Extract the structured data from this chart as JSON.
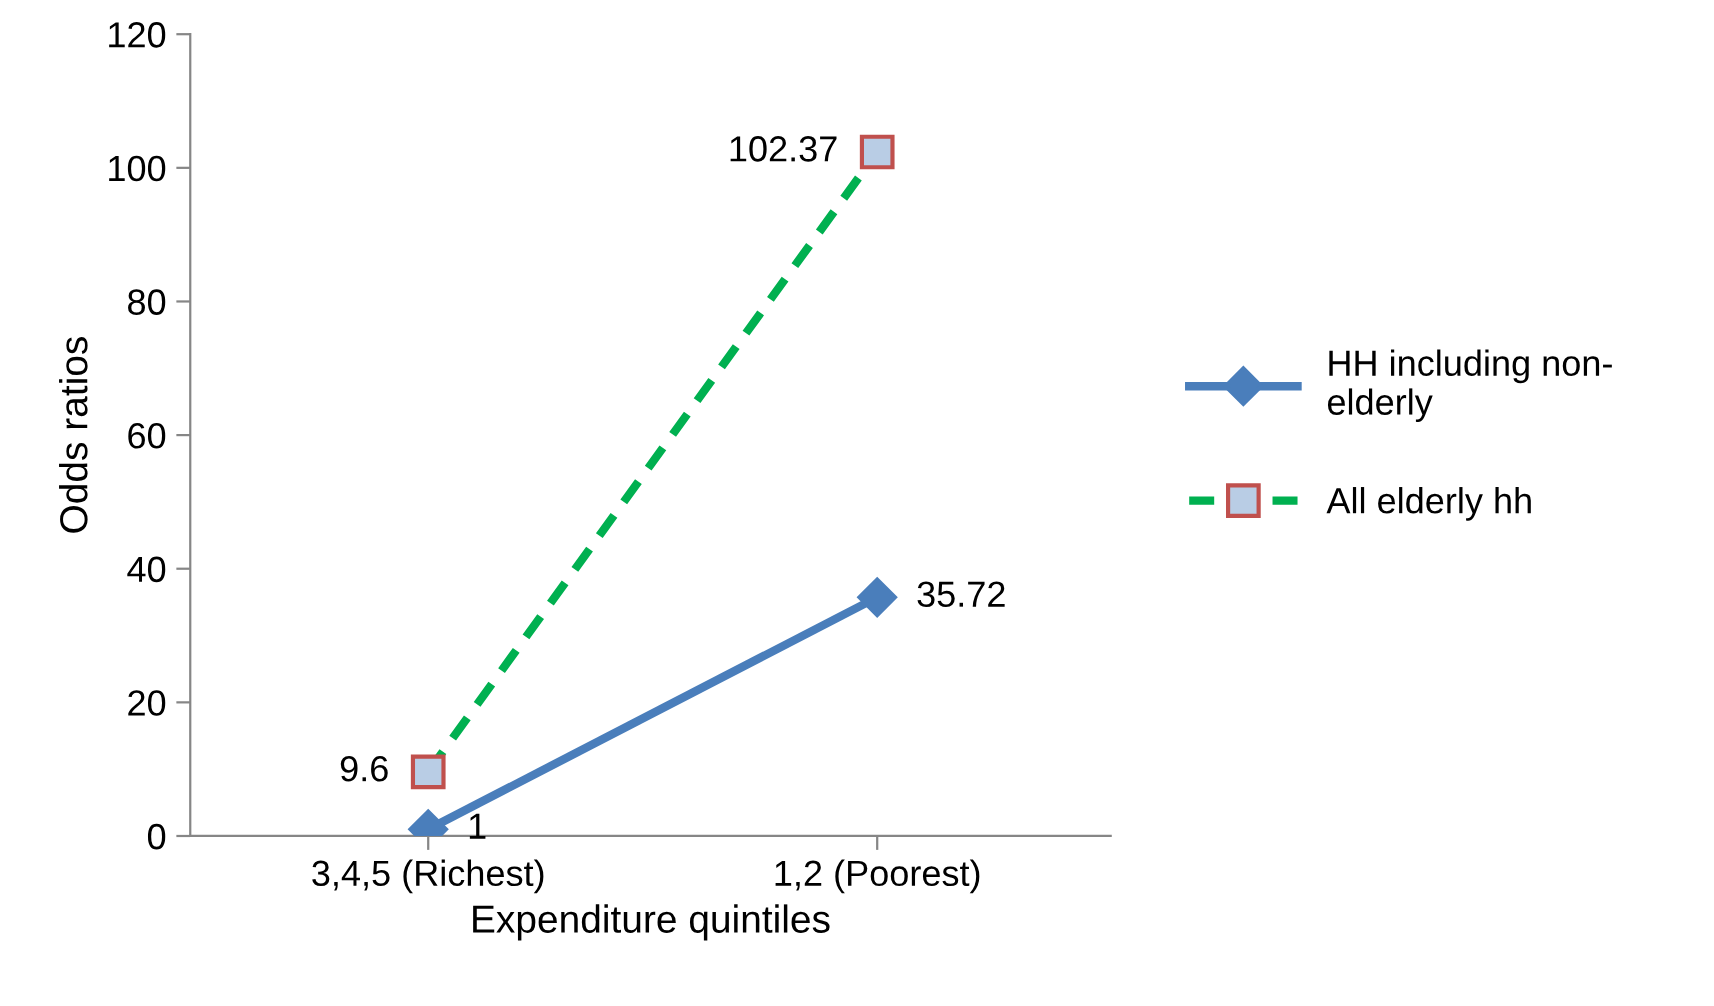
{
  "chart_data": {
    "type": "line",
    "xlabel": "Expenditure quintiles",
    "ylabel": "Odds ratios",
    "categories": [
      "3,4,5 (Richest)",
      "1,2 (Poorest)"
    ],
    "series": [
      {
        "name": "HH including non-elderly",
        "color": "#4a7ebb",
        "values": [
          1,
          35.72
        ],
        "marker": "diamond",
        "line_style": "solid"
      },
      {
        "name": "All elderly hh",
        "color": "#00b050",
        "values": [
          9.6,
          102.37
        ],
        "marker": "square",
        "line_style": "dashed"
      }
    ],
    "ylim": [
      0,
      120
    ],
    "yticks": [
      0,
      20,
      40,
      60,
      80,
      100,
      120
    ],
    "grid": false,
    "legend": "right",
    "data_labels": true
  }
}
